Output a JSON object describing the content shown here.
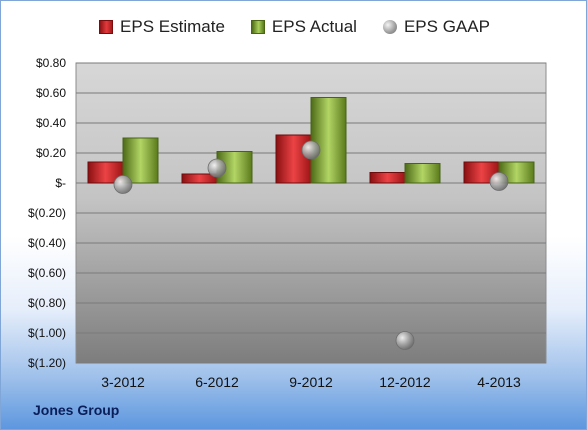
{
  "company_label": "Jones Group",
  "chart_data": {
    "type": "bar",
    "categories": [
      "3-2012",
      "6-2012",
      "9-2012",
      "12-2012",
      "4-2013"
    ],
    "series": [
      {
        "name": "EPS Estimate",
        "kind": "bar",
        "color": "#d42a2c",
        "values": [
          0.14,
          0.06,
          0.32,
          0.07,
          0.14
        ]
      },
      {
        "name": "EPS Actual",
        "kind": "bar",
        "color": "#92c04a",
        "values": [
          0.3,
          0.21,
          0.57,
          0.13,
          0.14
        ]
      },
      {
        "name": "EPS GAAP",
        "kind": "marker",
        "color": "#9a9a9a",
        "values": [
          -0.01,
          0.1,
          0.22,
          -1.05,
          0.01
        ]
      }
    ],
    "yticks": [
      "$0.80",
      "$0.60",
      "$0.40",
      "$0.20",
      "$-",
      "$(0.20)",
      "$(0.40)",
      "$(0.60)",
      "$(0.80)",
      "$(1.00)",
      "$(1.20)"
    ],
    "ylim": [
      -1.2,
      0.8
    ],
    "grid": true,
    "legend_position": "top"
  }
}
